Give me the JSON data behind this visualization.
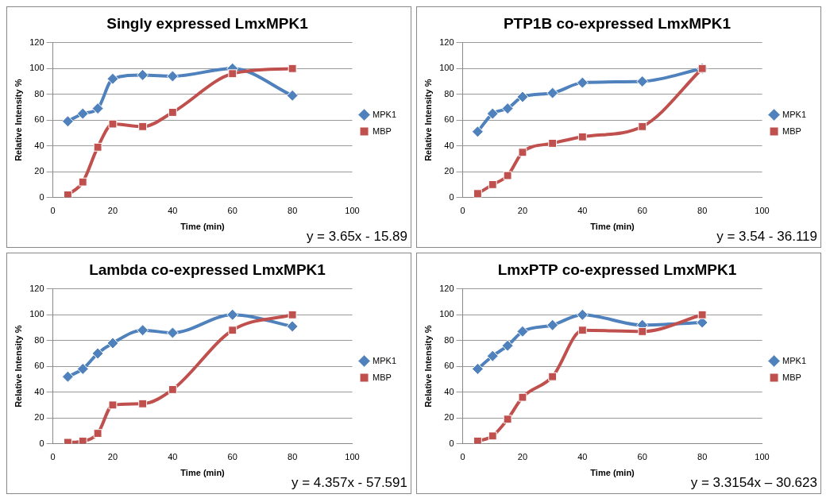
{
  "chart_data": [
    {
      "type": "line",
      "title": "Singly expressed LmxMPK1",
      "xlabel": "Time (min)",
      "ylabel": "Relative Intensity %",
      "xlim": [
        0,
        100
      ],
      "xticks": [
        0,
        20,
        40,
        60,
        80,
        100
      ],
      "ylim": [
        0,
        120
      ],
      "yticks": [
        0,
        20,
        40,
        60,
        80,
        100,
        120
      ],
      "grid": "y",
      "legend": "right",
      "annotations": [
        "y = 3.65x - 15.89"
      ],
      "x": [
        5,
        10,
        15,
        20,
        30,
        40,
        60,
        80
      ],
      "series": [
        {
          "name": "MPK1",
          "color": "#4f81bd",
          "marker": "diamond",
          "values": [
            59,
            65,
            69,
            92,
            95,
            94,
            100,
            79
          ]
        },
        {
          "name": "MBP",
          "color": "#c0504d",
          "marker": "square",
          "values": [
            2,
            12,
            39,
            57,
            55,
            66,
            96,
            100
          ]
        }
      ]
    },
    {
      "type": "line",
      "title": "PTP1B co-expressed LmxMPK1",
      "xlabel": "Time (min)",
      "ylabel": "Relative Intensity %",
      "xlim": [
        0,
        100
      ],
      "xticks": [
        0,
        20,
        40,
        60,
        80,
        100
      ],
      "ylim": [
        0,
        120
      ],
      "yticks": [
        0,
        20,
        40,
        60,
        80,
        100,
        120
      ],
      "grid": "y",
      "legend": "right",
      "annotations": [
        "y = 3.54 - 36.119"
      ],
      "x": [
        5,
        10,
        15,
        20,
        30,
        40,
        60,
        80
      ],
      "series": [
        {
          "name": "MPK1",
          "color": "#4f81bd",
          "marker": "diamond",
          "values": [
            51,
            65,
            69,
            78,
            81,
            89,
            90,
            100
          ]
        },
        {
          "name": "MBP",
          "color": "#c0504d",
          "marker": "square",
          "values": [
            3,
            10,
            17,
            35,
            42,
            47,
            55,
            100
          ]
        }
      ]
    },
    {
      "type": "line",
      "title": "Lambda co-expressed LmxMPK1",
      "xlabel": "Time (min)",
      "ylabel": "Relative Intensity %",
      "xlim": [
        0,
        100
      ],
      "xticks": [
        0,
        20,
        40,
        60,
        80,
        100
      ],
      "ylim": [
        0,
        120
      ],
      "yticks": [
        0,
        20,
        40,
        60,
        80,
        100,
        120
      ],
      "grid": "y",
      "legend": "right",
      "annotations": [
        "y = 4.357x - 57.591"
      ],
      "x": [
        5,
        10,
        15,
        20,
        30,
        40,
        60,
        80
      ],
      "series": [
        {
          "name": "MPK1",
          "color": "#4f81bd",
          "marker": "diamond",
          "values": [
            52,
            58,
            70,
            78,
            88,
            86,
            100,
            91
          ]
        },
        {
          "name": "MBP",
          "color": "#c0504d",
          "marker": "square",
          "values": [
            1,
            2,
            8,
            30,
            31,
            42,
            88,
            100
          ]
        }
      ]
    },
    {
      "type": "line",
      "title": "LmxPTP co-expressed LmxMPK1",
      "xlabel": "Time (min)",
      "ylabel": "Relative Intensity %",
      "xlim": [
        0,
        100
      ],
      "xticks": [
        0,
        20,
        40,
        60,
        80,
        100
      ],
      "ylim": [
        0,
        120
      ],
      "yticks": [
        0,
        20,
        40,
        60,
        80,
        100,
        120
      ],
      "grid": "y",
      "legend": "right",
      "annotations": [
        "y = 3.3154x – 30.623"
      ],
      "x": [
        5,
        10,
        15,
        20,
        30,
        40,
        60,
        80
      ],
      "series": [
        {
          "name": "MPK1",
          "color": "#4f81bd",
          "marker": "diamond",
          "values": [
            58,
            68,
            76,
            87,
            92,
            100,
            92,
            94
          ]
        },
        {
          "name": "MBP",
          "color": "#c0504d",
          "marker": "square",
          "values": [
            2,
            6,
            19,
            36,
            52,
            88,
            87,
            100
          ]
        }
      ]
    }
  ]
}
